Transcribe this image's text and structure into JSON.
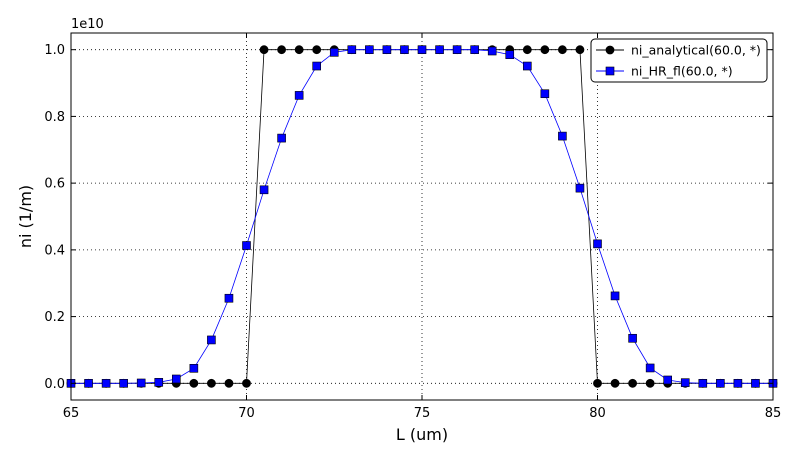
{
  "chart_data": {
    "type": "line",
    "title": "",
    "xlabel": "L (um)",
    "ylabel": "ni (1/m)",
    "y_offset_label": "1e10",
    "xlim": [
      65,
      85
    ],
    "ylim": [
      -0.05,
      1.05
    ],
    "x_ticks": [
      "65",
      "70",
      "75",
      "80",
      "85"
    ],
    "y_ticks": [
      "0.0",
      "0.2",
      "0.4",
      "0.6",
      "0.8",
      "1.0"
    ],
    "grid": true,
    "legend_position": "top-right",
    "series": [
      {
        "name": "ni_analytical(60.0, *)",
        "color": "#000000",
        "marker": "circle",
        "x": [
          65.0,
          65.5,
          66.0,
          66.5,
          67.0,
          67.5,
          68.0,
          68.5,
          69.0,
          69.5,
          70.0,
          70.5,
          71.0,
          71.5,
          72.0,
          72.5,
          73.0,
          73.5,
          74.0,
          74.5,
          75.0,
          75.5,
          76.0,
          76.5,
          77.0,
          77.5,
          78.0,
          78.5,
          79.0,
          79.5,
          80.0,
          80.5,
          81.0,
          81.5,
          82.0,
          82.5,
          83.0,
          83.5,
          84.0,
          84.5,
          85.0
        ],
        "values": [
          0,
          0,
          0,
          0,
          0,
          0,
          0,
          0,
          0,
          0,
          0,
          1,
          1,
          1,
          1,
          1,
          1,
          1,
          1,
          1,
          1,
          1,
          1,
          1,
          1,
          1,
          1,
          1,
          1,
          1,
          0,
          0,
          0,
          0,
          0,
          0,
          0,
          0,
          0,
          0,
          0
        ]
      },
      {
        "name": "ni_HR_fl(60.0, *)",
        "color": "#0000ff",
        "marker": "square",
        "x": [
          65.0,
          65.5,
          66.0,
          66.5,
          67.0,
          67.5,
          68.0,
          68.5,
          69.0,
          69.5,
          70.0,
          70.5,
          71.0,
          71.5,
          72.0,
          72.5,
          73.0,
          73.5,
          74.0,
          74.5,
          75.0,
          75.5,
          76.0,
          76.5,
          77.0,
          77.5,
          78.0,
          78.5,
          79.0,
          79.5,
          80.0,
          80.5,
          81.0,
          81.5,
          82.0,
          82.5,
          83.0,
          83.5,
          84.0,
          84.5,
          85.0
        ],
        "values": [
          0,
          0,
          0,
          0,
          0.001,
          0.003,
          0.013,
          0.045,
          0.13,
          0.255,
          0.413,
          0.58,
          0.735,
          0.863,
          0.951,
          0.992,
          1.0,
          1.0,
          1.0,
          1.0,
          1.0,
          1.0,
          1.0,
          1.0,
          0.996,
          0.985,
          0.951,
          0.868,
          0.741,
          0.585,
          0.418,
          0.262,
          0.135,
          0.046,
          0.01,
          0.002,
          0,
          0,
          0,
          0,
          0
        ]
      }
    ]
  }
}
